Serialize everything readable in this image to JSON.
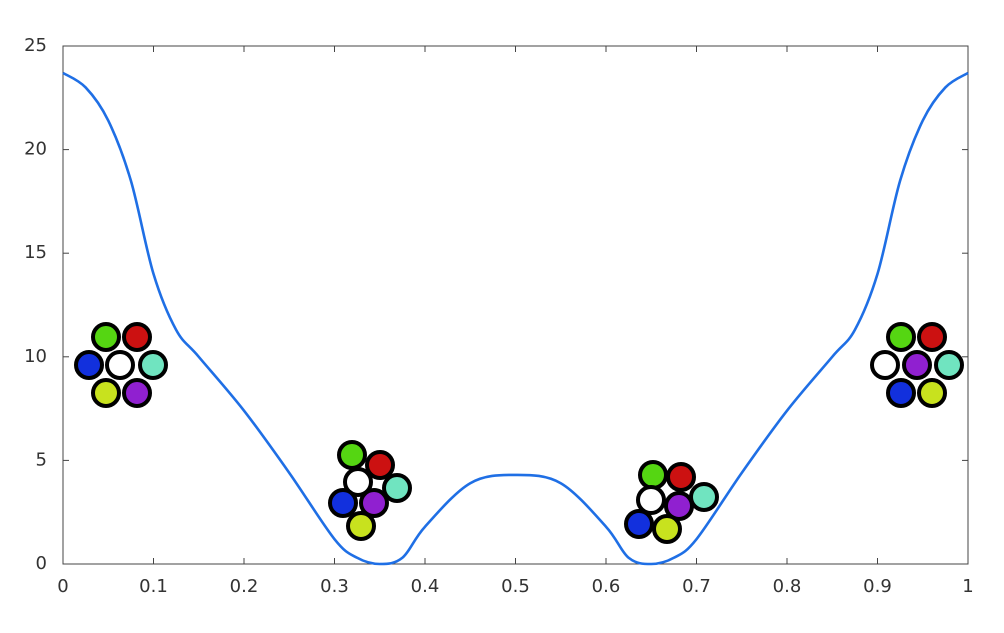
{
  "chart_data": {
    "type": "line",
    "x": [
      0,
      0.025,
      0.05,
      0.075,
      0.1,
      0.125,
      0.15,
      0.2,
      0.25,
      0.3,
      0.325,
      0.35,
      0.375,
      0.4,
      0.45,
      0.5,
      0.55,
      0.6,
      0.625,
      0.65,
      0.675,
      0.7,
      0.75,
      0.8,
      0.85,
      0.875,
      0.9,
      0.925,
      0.95,
      0.975,
      1
    ],
    "series": [
      {
        "color": "#1f6fe5",
        "values": [
          23.7,
          23.0,
          21.4,
          18.5,
          14.0,
          11.3,
          10.0,
          7.4,
          4.4,
          1.2,
          0.3,
          0.0,
          0.3,
          1.8,
          3.9,
          4.3,
          3.9,
          1.8,
          0.3,
          0.0,
          0.3,
          1.2,
          4.4,
          7.4,
          10.0,
          11.3,
          14.0,
          18.5,
          21.4,
          23.0,
          23.7
        ]
      }
    ],
    "xlim": [
      0,
      1
    ],
    "xticks": [
      0,
      0.1,
      0.2,
      0.3,
      0.4,
      0.5,
      0.6,
      0.7,
      0.8,
      0.9,
      1
    ],
    "ylim": [
      0,
      25
    ],
    "yticks": [
      0,
      5,
      10,
      15,
      20,
      25
    ]
  }
}
